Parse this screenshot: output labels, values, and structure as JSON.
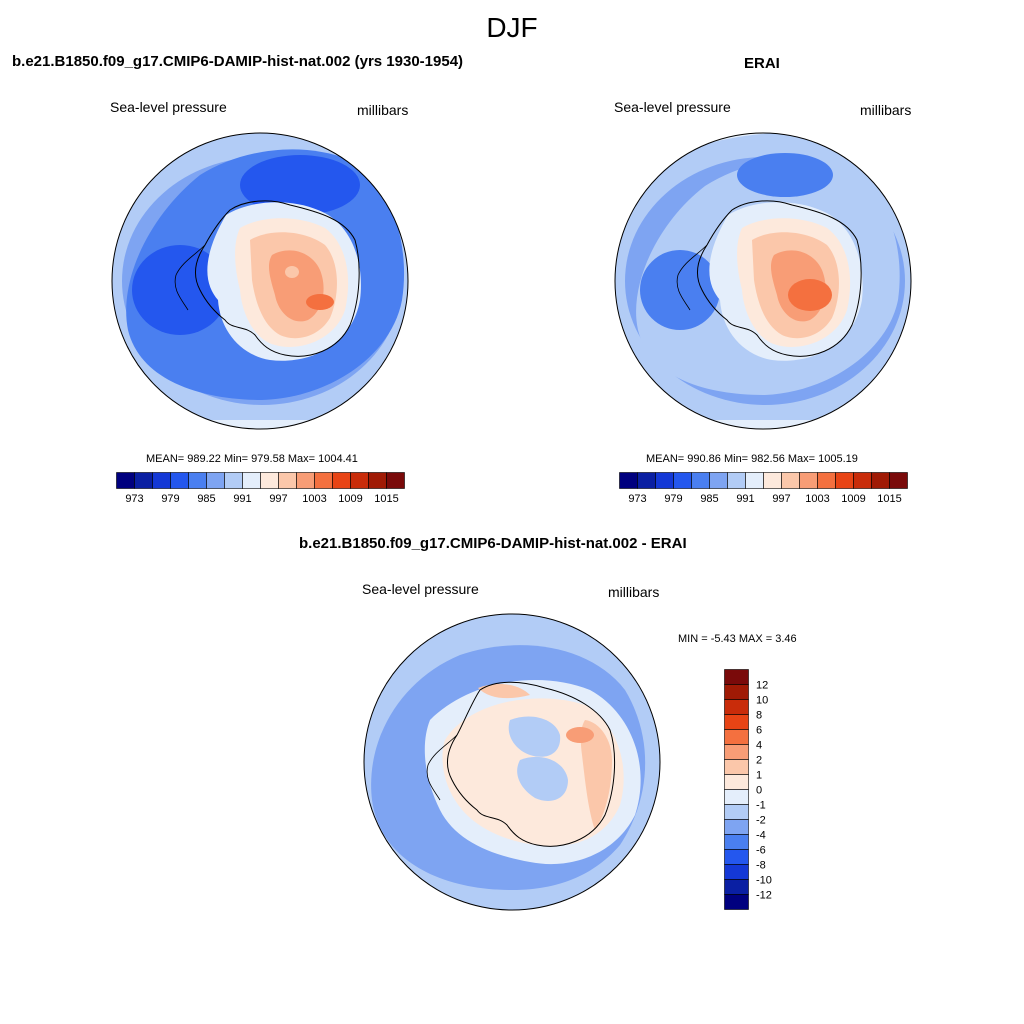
{
  "figure": {
    "title": "DJF"
  },
  "panels": [
    {
      "title": "b.e21.B1850.f09_g17.CMIP6-DAMIP-hist-nat.002 (yrs 1930-1954)",
      "left_label": "Sea-level pressure",
      "right_label": "millibars",
      "stats": "MEAN= 989.22  Min= 979.58  Max= 1004.41",
      "mean": 989.22,
      "min": 979.58,
      "max": 1004.41
    },
    {
      "title": "ERAI",
      "left_label": "Sea-level pressure",
      "right_label": "millibars",
      "stats": "MEAN= 990.86  Min= 982.56  Max= 1005.19",
      "mean": 990.86,
      "min": 982.56,
      "max": 1005.19
    },
    {
      "title": "b.e21.B1850.f09_g17.CMIP6-DAMIP-hist-nat.002 - ERAI",
      "left_label": "Sea-level pressure",
      "right_label": "millibars",
      "stats": "MIN =  -5.43 MAX =   3.46",
      "min": -5.43,
      "max": 3.46
    }
  ],
  "colorbars": {
    "abs": {
      "tick_labels": [
        "973",
        "979",
        "985",
        "991",
        "997",
        "1003",
        "1009",
        "1015"
      ],
      "colors": [
        "#00007f",
        "#0a1fa3",
        "#1438d6",
        "#2457ee",
        "#4a7ff0",
        "#7ea4f2",
        "#b2ccf6",
        "#e4eefb",
        "#fde9dc",
        "#fbc7aa",
        "#f89d76",
        "#f4703f",
        "#e84415",
        "#c92c0a",
        "#a01a05",
        "#7a0a0a"
      ]
    },
    "diff": {
      "tick_labels": [
        "12",
        "10",
        "8",
        "6",
        "4",
        "2",
        "1",
        "0",
        "-1",
        "-2",
        "-4",
        "-6",
        "-8",
        "-10",
        "-12"
      ],
      "colors": [
        "#7a0a0a",
        "#a01a05",
        "#c92c0a",
        "#e84415",
        "#f4703f",
        "#f89d76",
        "#fbc7aa",
        "#fde9dc",
        "#e4eefb",
        "#b2ccf6",
        "#7ea4f2",
        "#4a7ff0",
        "#2457ee",
        "#1438d6",
        "#0a1fa3",
        "#00007f"
      ]
    }
  }
}
